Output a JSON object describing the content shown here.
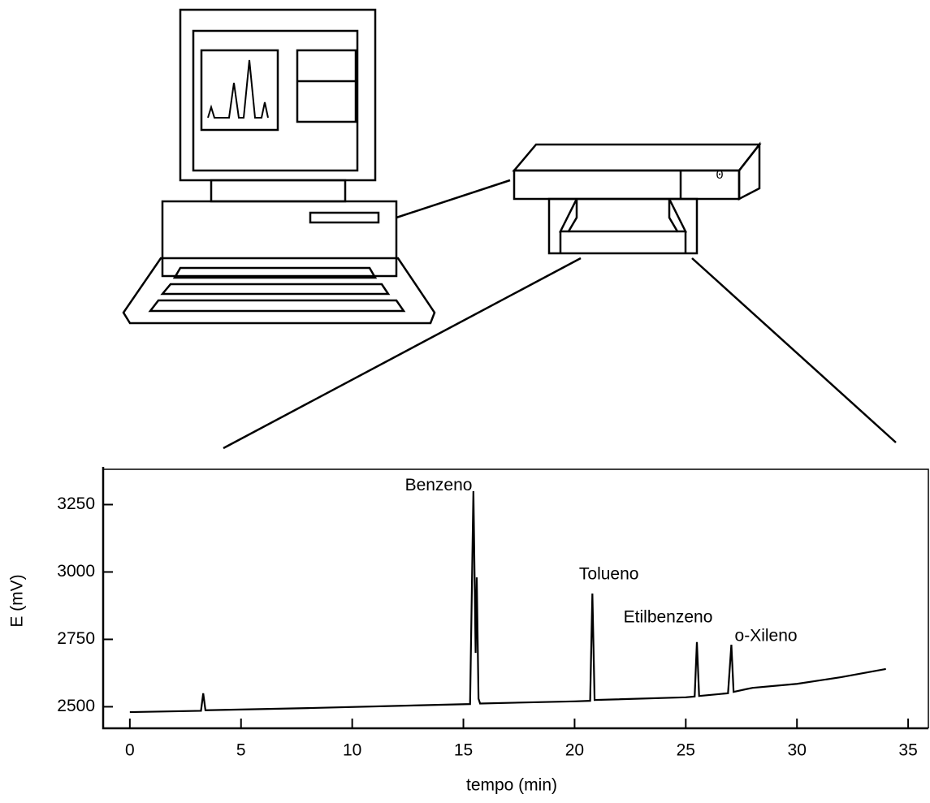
{
  "chart_data": {
    "type": "line",
    "x_label": "tempo (min)",
    "y_label": "E (mV)",
    "xlim": [
      -1.2,
      35.8
    ],
    "ylim": [
      2420,
      3390
    ],
    "xticks": [
      0,
      5,
      10,
      15,
      20,
      25,
      30,
      35
    ],
    "yticks": [
      2500,
      2750,
      3000,
      3250
    ],
    "x": [
      0,
      3.2,
      3.3,
      3.4,
      8,
      15.3,
      15.45,
      15.55,
      15.6,
      15.68,
      15.75,
      20,
      20.7,
      20.8,
      20.9,
      25,
      25.4,
      25.5,
      25.6,
      26.9,
      27.05,
      27.15,
      27.7,
      28,
      30,
      32,
      34
    ],
    "series": [
      {
        "color": "#000000",
        "values": [
          2480,
          2485,
          2550,
          2487,
          2495,
          2510,
          3300,
          2700,
          2980,
          2530,
          2512,
          2520,
          2522,
          2920,
          2525,
          2535,
          2538,
          2740,
          2540,
          2550,
          2730,
          2555,
          2565,
          2570,
          2585,
          2610,
          2640
        ]
      }
    ],
    "annotations": [
      "Benzeno",
      "Tolueno",
      "Etilbenzeno",
      "o-Xileno"
    ]
  },
  "illustration": {
    "button_label": "0"
  }
}
